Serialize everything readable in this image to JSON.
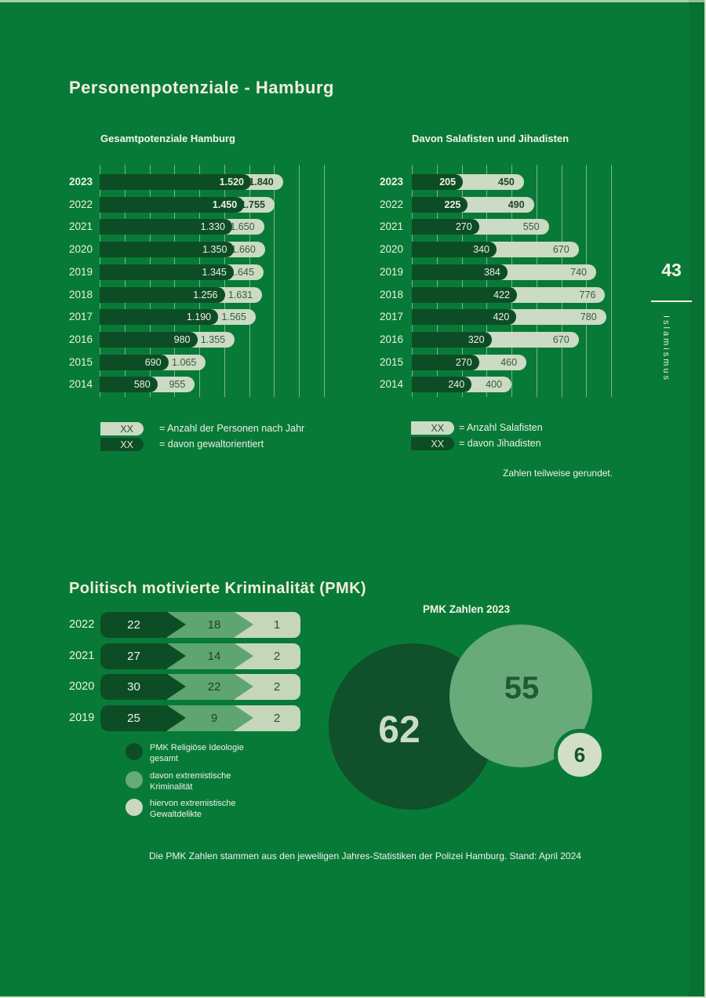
{
  "page": {
    "title": "Personenpotenziale - Hamburg",
    "page_number": "43",
    "section_tab": "Islamismus",
    "rounding_note": "Zahlen teilweise gerundet.",
    "footer_note": "Die PMK Zahlen stammen aus den jeweiligen Jahres-Statistiken der Polizei Hamburg. Stand: April 2024"
  },
  "colors": {
    "background": "#087a38",
    "dark_green": "#0d4d26",
    "medium_green": "#5fa572",
    "light_sage": "#ccdbc3",
    "cream_text": "#f2eedb"
  },
  "chart_data": [
    {
      "type": "bar",
      "orientation": "horizontal",
      "title": "Gesamtpotenziale Hamburg",
      "categories": [
        "2023",
        "2022",
        "2021",
        "2020",
        "2019",
        "2018",
        "2017",
        "2016",
        "2015",
        "2014"
      ],
      "series": [
        {
          "name": "Anzahl der Personen nach Jahr",
          "values": [
            1840,
            1755,
            1650,
            1660,
            1645,
            1631,
            1565,
            1355,
            1065,
            955
          ],
          "labels": [
            "1.840",
            "1.755",
            "1.650",
            "1.660",
            "1.645",
            "1.631",
            "1.565",
            "1.355",
            "1.065",
            "955"
          ]
        },
        {
          "name": "davon gewaltorientiert",
          "values": [
            1520,
            1450,
            1330,
            1350,
            1345,
            1256,
            1190,
            980,
            690,
            580
          ],
          "labels": [
            "1.520",
            "1.450",
            "1.330",
            "1.350",
            "1.345",
            "1.256",
            "1.190",
            "980",
            "690",
            "580"
          ]
        }
      ],
      "xlim": [
        0,
        2250
      ],
      "grid_interval": 250,
      "grid": true,
      "bold_value_rows": 2,
      "bold_category_rows": 1,
      "legend": [
        {
          "swatch": "light",
          "swatch_label": "XX",
          "text": "= Anzahl der Personen nach Jahr"
        },
        {
          "swatch": "dark",
          "swatch_label": "XX",
          "text": "= davon gewaltorientiert"
        }
      ]
    },
    {
      "type": "bar",
      "orientation": "horizontal",
      "title": "Davon Salafisten und Jihadisten",
      "categories": [
        "2023",
        "2022",
        "2021",
        "2020",
        "2019",
        "2018",
        "2017",
        "2016",
        "2015",
        "2014"
      ],
      "series": [
        {
          "name": "Anzahl Salafisten",
          "values": [
            450,
            490,
            550,
            670,
            740,
            776,
            780,
            670,
            460,
            400
          ],
          "labels": [
            "450",
            "490",
            "550",
            "670",
            "740",
            "776",
            "780",
            "670",
            "460",
            "400"
          ]
        },
        {
          "name": "davon Jihadisten",
          "values": [
            205,
            225,
            270,
            340,
            384,
            422,
            420,
            320,
            270,
            240
          ],
          "labels": [
            "205",
            "225",
            "270",
            "340",
            "384",
            "422",
            "420",
            "320",
            "270",
            "240"
          ]
        }
      ],
      "xlim": [
        0,
        800
      ],
      "grid_interval": 100,
      "grid": true,
      "bold_value_rows": 2,
      "bold_category_rows": 1,
      "legend": [
        {
          "swatch": "light",
          "swatch_label": "XX",
          "text": "= Anzahl Salafisten"
        },
        {
          "swatch": "dark",
          "swatch_label": "XX",
          "text": "= davon Jihadisten"
        }
      ]
    },
    {
      "type": "bar",
      "orientation": "horizontal",
      "title": "Politisch motivierte Kriminalität (PMK)",
      "categories": [
        "2022",
        "2021",
        "2020",
        "2019"
      ],
      "proportional": false,
      "series": [
        {
          "name": "PMK Religiöse Ideologie gesamt",
          "values": [
            22,
            27,
            30,
            25
          ]
        },
        {
          "name": "davon extremistische Kriminalität",
          "values": [
            18,
            14,
            22,
            9
          ]
        },
        {
          "name": "hiervon extremistische Gewaltdelikte",
          "values": [
            1,
            2,
            2,
            2
          ]
        }
      ]
    },
    {
      "type": "circles",
      "title": "PMK Zahlen 2023",
      "items": [
        {
          "label": "PMK Religiöse Ideologie gesamt",
          "value": 62,
          "color": "dark"
        },
        {
          "label": "davon extremistische Kriminalität",
          "value": 55,
          "color": "medium"
        },
        {
          "label": "hiervon extremistische Gewaltdelikte",
          "value": 6,
          "color": "light"
        }
      ]
    }
  ]
}
